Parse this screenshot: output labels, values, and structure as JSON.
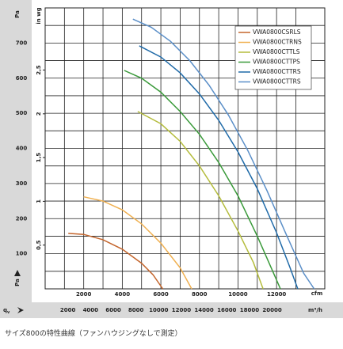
{
  "chart_data": {
    "type": "line",
    "xlabel": "cfm",
    "x2label": "m³/h",
    "ylabel": "Pa",
    "y2label": "in wg",
    "flow_symbol": "q",
    "flow_subscript": "v",
    "xlim": [
      0,
      14500
    ],
    "xticks": [
      2000,
      4000,
      6000,
      8000,
      10000,
      12000
    ],
    "x2lim": [
      0,
      24636
    ],
    "x2ticks": [
      2000,
      4000,
      6000,
      8000,
      10000,
      12000,
      14000,
      16000,
      18000,
      20000
    ],
    "ylim": [
      0,
      800
    ],
    "yticks": [
      100,
      200,
      300,
      400,
      500,
      600,
      700
    ],
    "y2lim": [
      0,
      3.21
    ],
    "y2ticks": [
      {
        "value": 0.5,
        "label": "0,5"
      },
      {
        "value": 1,
        "label": "1"
      },
      {
        "value": 1.5,
        "label": "1,5"
      },
      {
        "value": 2,
        "label": "2"
      },
      {
        "value": 2.5,
        "label": "2,5"
      }
    ],
    "grid": true,
    "legend": "upper right",
    "series": [
      {
        "name": "VWA0800CSRLS",
        "color": "#c4652c",
        "x": [
          1200,
          2000,
          3000,
          4000,
          5000,
          5600,
          6100
        ],
        "values": [
          158,
          155,
          140,
          113,
          73,
          40,
          0
        ]
      },
      {
        "name": "VWA0800CTRNS",
        "color": "#f0b050",
        "x": [
          2000,
          3000,
          4000,
          5000,
          6000,
          7000,
          7600
        ],
        "values": [
          262,
          250,
          225,
          185,
          130,
          60,
          0
        ]
      },
      {
        "name": "VWA0800CTTLS",
        "color": "#b4bc3c",
        "x": [
          4800,
          6000,
          7000,
          8000,
          9000,
          10000,
          10800,
          11300
        ],
        "values": [
          505,
          470,
          420,
          350,
          265,
          165,
          75,
          0
        ]
      },
      {
        "name": "VWA0800CTTPS",
        "color": "#3a9a3a",
        "x": [
          4100,
          5000,
          6000,
          7000,
          8000,
          9000,
          10000,
          11000,
          11800,
          12200
        ],
        "values": [
          622,
          600,
          560,
          505,
          440,
          360,
          265,
          150,
          50,
          0
        ]
      },
      {
        "name": "VWA0800CTTRS",
        "color": "#1f6aa8",
        "x": [
          4880,
          6000,
          7000,
          8000,
          9000,
          10000,
          11000,
          12000,
          12700,
          13100
        ],
        "values": [
          692,
          660,
          615,
          555,
          480,
          390,
          285,
          160,
          60,
          0
        ]
      },
      {
        "name": "VWA0800CTTRS",
        "color": "#5b8fc8",
        "x": [
          4550,
          5500,
          6500,
          7500,
          8500,
          9500,
          10500,
          11500,
          12500,
          13400,
          13950
        ],
        "values": [
          768,
          745,
          705,
          650,
          580,
          495,
          395,
          280,
          155,
          45,
          0
        ]
      }
    ]
  },
  "caption": "サイズ800の特性曲線（ファンハウジングなしで測定）"
}
